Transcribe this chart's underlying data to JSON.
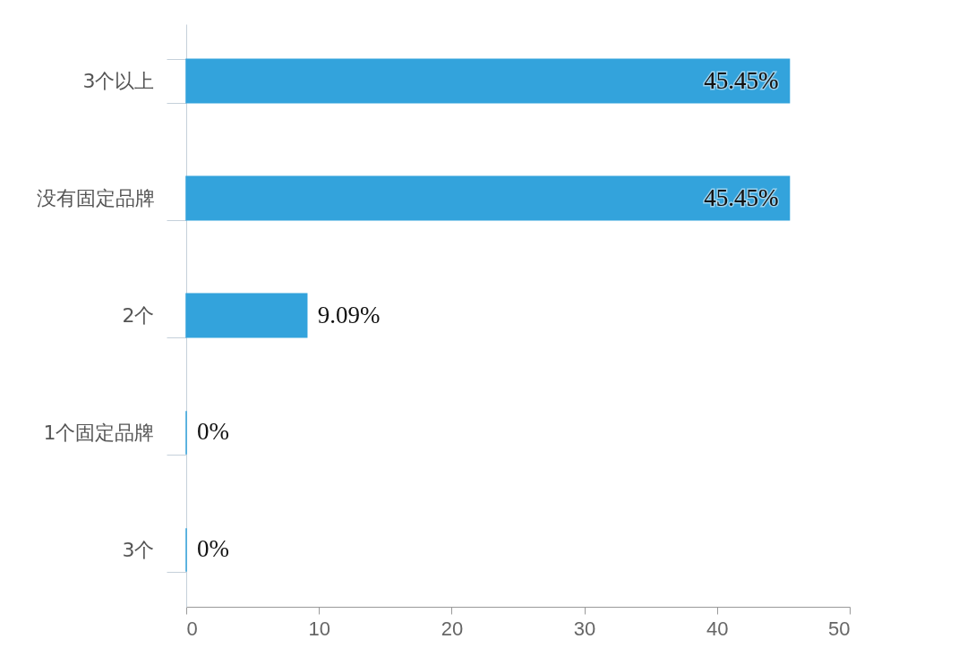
{
  "chart_data": {
    "type": "bar",
    "orientation": "horizontal",
    "categories": [
      "3个以上",
      "没有固定品牌",
      "2个",
      "1个固定品牌",
      "3个"
    ],
    "values": [
      45.45,
      45.45,
      9.09,
      0,
      0
    ],
    "value_labels": [
      "45.45%",
      "45.45%",
      "9.09%",
      "0%",
      "0%"
    ],
    "color": "#33a3dc",
    "xlim": [
      0,
      50
    ],
    "xticks": [
      0,
      10,
      20,
      30,
      40,
      50
    ],
    "grid": false
  }
}
